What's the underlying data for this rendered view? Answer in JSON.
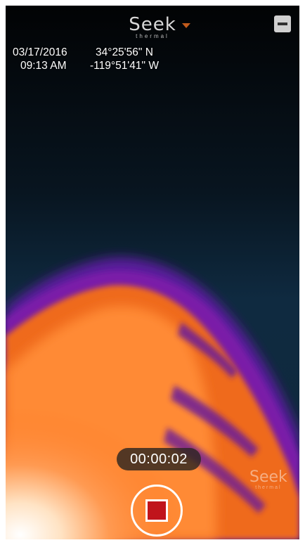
{
  "brand": {
    "logo_main": "Seek",
    "logo_sub": "thermal",
    "accent_color": "#c25b1c"
  },
  "overlay": {
    "date": "03/17/2016",
    "time": "09:13 AM",
    "latitude": "34°25'56\" N",
    "longitude": "-119°51'41\" W"
  },
  "recording": {
    "elapsed": "00:00:02",
    "stop_color": "#c0141c"
  },
  "watermark": {
    "main": "Seek",
    "sub": "thermal"
  },
  "icons": {
    "dropdown": "chevron-down-icon",
    "minimize": "minimize-icon",
    "record": "stop-icon"
  }
}
